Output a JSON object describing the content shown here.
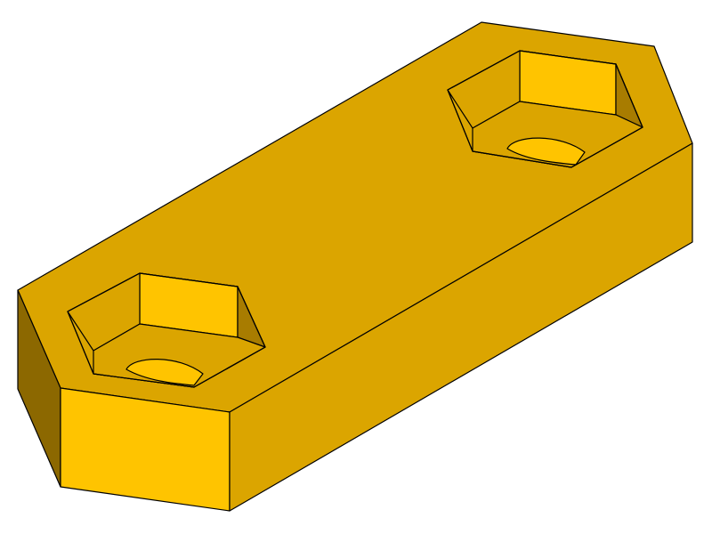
{
  "view": {
    "background": "#ffffff"
  },
  "part": {
    "kind": "slotted hex-end plate with two hex-socket counterbores",
    "colors": {
      "top_face": "#DBA500",
      "front_face": "#FFC400",
      "right_face": "#DBA500",
      "left_bevel": "#8C6800",
      "pocket_wall_lit": "#FFC400",
      "pocket_wall_mid": "#DBA500",
      "pocket_wall_dark": "#A87C00",
      "pocket_floor": "#DBA500",
      "bore": "#FFC400",
      "edge": "#000000"
    }
  }
}
